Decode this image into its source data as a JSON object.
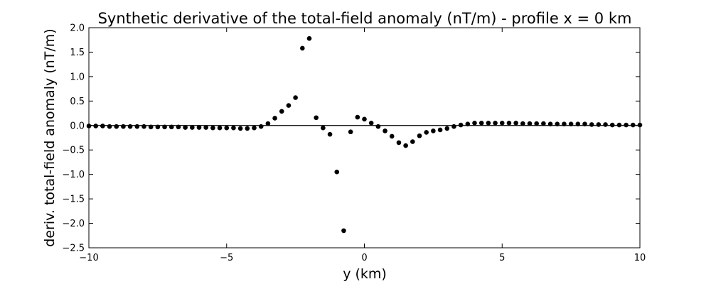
{
  "chart_data": {
    "type": "scatter",
    "title": "Synthetic derivative of the total-field anomaly (nT/m) - profile x = 0 km",
    "xlabel": "y (km)",
    "ylabel": "deriv. total-field anomaly (nT/m)",
    "xlim": [
      -10,
      10
    ],
    "ylim": [
      -2.5,
      2.0
    ],
    "xticks": [
      -10,
      -5,
      0,
      5,
      10
    ],
    "xtick_labels": [
      "−10",
      "−5",
      "0",
      "5",
      "10"
    ],
    "yticks": [
      -2.5,
      -2.0,
      -1.5,
      -1.0,
      -0.5,
      0.0,
      0.5,
      1.0,
      1.5,
      2.0
    ],
    "ytick_labels": [
      "−2.5",
      "−2.0",
      "−1.5",
      "−1.0",
      "−0.5",
      "0.0",
      "0.5",
      "1.0",
      "1.5",
      "2.0"
    ],
    "grid": false,
    "zero_line": true,
    "marker_color": "#000000",
    "line_color": "#000000",
    "points": [
      {
        "x": -10.0,
        "y": -0.01
      },
      {
        "x": -9.75,
        "y": -0.01
      },
      {
        "x": -9.5,
        "y": -0.01
      },
      {
        "x": -9.25,
        "y": -0.02
      },
      {
        "x": -9.0,
        "y": -0.02
      },
      {
        "x": -8.75,
        "y": -0.02
      },
      {
        "x": -8.5,
        "y": -0.02
      },
      {
        "x": -8.25,
        "y": -0.02
      },
      {
        "x": -8.0,
        "y": -0.02
      },
      {
        "x": -7.75,
        "y": -0.03
      },
      {
        "x": -7.5,
        "y": -0.03
      },
      {
        "x": -7.25,
        "y": -0.03
      },
      {
        "x": -7.0,
        "y": -0.03
      },
      {
        "x": -6.75,
        "y": -0.03
      },
      {
        "x": -6.5,
        "y": -0.04
      },
      {
        "x": -6.25,
        "y": -0.04
      },
      {
        "x": -6.0,
        "y": -0.04
      },
      {
        "x": -5.75,
        "y": -0.04
      },
      {
        "x": -5.5,
        "y": -0.05
      },
      {
        "x": -5.25,
        "y": -0.05
      },
      {
        "x": -5.0,
        "y": -0.05
      },
      {
        "x": -4.75,
        "y": -0.05
      },
      {
        "x": -4.5,
        "y": -0.06
      },
      {
        "x": -4.25,
        "y": -0.06
      },
      {
        "x": -4.0,
        "y": -0.05
      },
      {
        "x": -3.75,
        "y": -0.02
      },
      {
        "x": -3.5,
        "y": 0.04
      },
      {
        "x": -3.25,
        "y": 0.15
      },
      {
        "x": -3.0,
        "y": 0.29
      },
      {
        "x": -2.75,
        "y": 0.41
      },
      {
        "x": -2.5,
        "y": 0.57
      },
      {
        "x": -2.25,
        "y": 1.58
      },
      {
        "x": -2.0,
        "y": 1.78
      },
      {
        "x": -1.75,
        "y": 0.16
      },
      {
        "x": -1.5,
        "y": -0.05
      },
      {
        "x": -1.25,
        "y": -0.18
      },
      {
        "x": -1.0,
        "y": -0.95
      },
      {
        "x": -0.75,
        "y": -2.15
      },
      {
        "x": -0.5,
        "y": -0.13
      },
      {
        "x": -0.25,
        "y": 0.17
      },
      {
        "x": 0.0,
        "y": 0.13
      },
      {
        "x": 0.25,
        "y": 0.05
      },
      {
        "x": 0.5,
        "y": -0.02
      },
      {
        "x": 0.75,
        "y": -0.11
      },
      {
        "x": 1.0,
        "y": -0.22
      },
      {
        "x": 1.25,
        "y": -0.35
      },
      {
        "x": 1.5,
        "y": -0.41
      },
      {
        "x": 1.75,
        "y": -0.33
      },
      {
        "x": 2.0,
        "y": -0.21
      },
      {
        "x": 2.25,
        "y": -0.14
      },
      {
        "x": 2.5,
        "y": -0.11
      },
      {
        "x": 2.75,
        "y": -0.09
      },
      {
        "x": 3.0,
        "y": -0.06
      },
      {
        "x": 3.25,
        "y": -0.02
      },
      {
        "x": 3.5,
        "y": 0.01
      },
      {
        "x": 3.75,
        "y": 0.03
      },
      {
        "x": 4.0,
        "y": 0.05
      },
      {
        "x": 4.25,
        "y": 0.05
      },
      {
        "x": 4.5,
        "y": 0.05
      },
      {
        "x": 4.75,
        "y": 0.05
      },
      {
        "x": 5.0,
        "y": 0.05
      },
      {
        "x": 5.25,
        "y": 0.05
      },
      {
        "x": 5.5,
        "y": 0.05
      },
      {
        "x": 5.75,
        "y": 0.04
      },
      {
        "x": 6.0,
        "y": 0.04
      },
      {
        "x": 6.25,
        "y": 0.04
      },
      {
        "x": 6.5,
        "y": 0.04
      },
      {
        "x": 6.75,
        "y": 0.03
      },
      {
        "x": 7.0,
        "y": 0.03
      },
      {
        "x": 7.25,
        "y": 0.03
      },
      {
        "x": 7.5,
        "y": 0.03
      },
      {
        "x": 7.75,
        "y": 0.03
      },
      {
        "x": 8.0,
        "y": 0.03
      },
      {
        "x": 8.25,
        "y": 0.02
      },
      {
        "x": 8.5,
        "y": 0.02
      },
      {
        "x": 8.75,
        "y": 0.02
      },
      {
        "x": 9.0,
        "y": 0.01
      },
      {
        "x": 9.25,
        "y": 0.01
      },
      {
        "x": 9.5,
        "y": 0.01
      },
      {
        "x": 9.75,
        "y": 0.01
      },
      {
        "x": 10.0,
        "y": 0.01
      }
    ]
  }
}
